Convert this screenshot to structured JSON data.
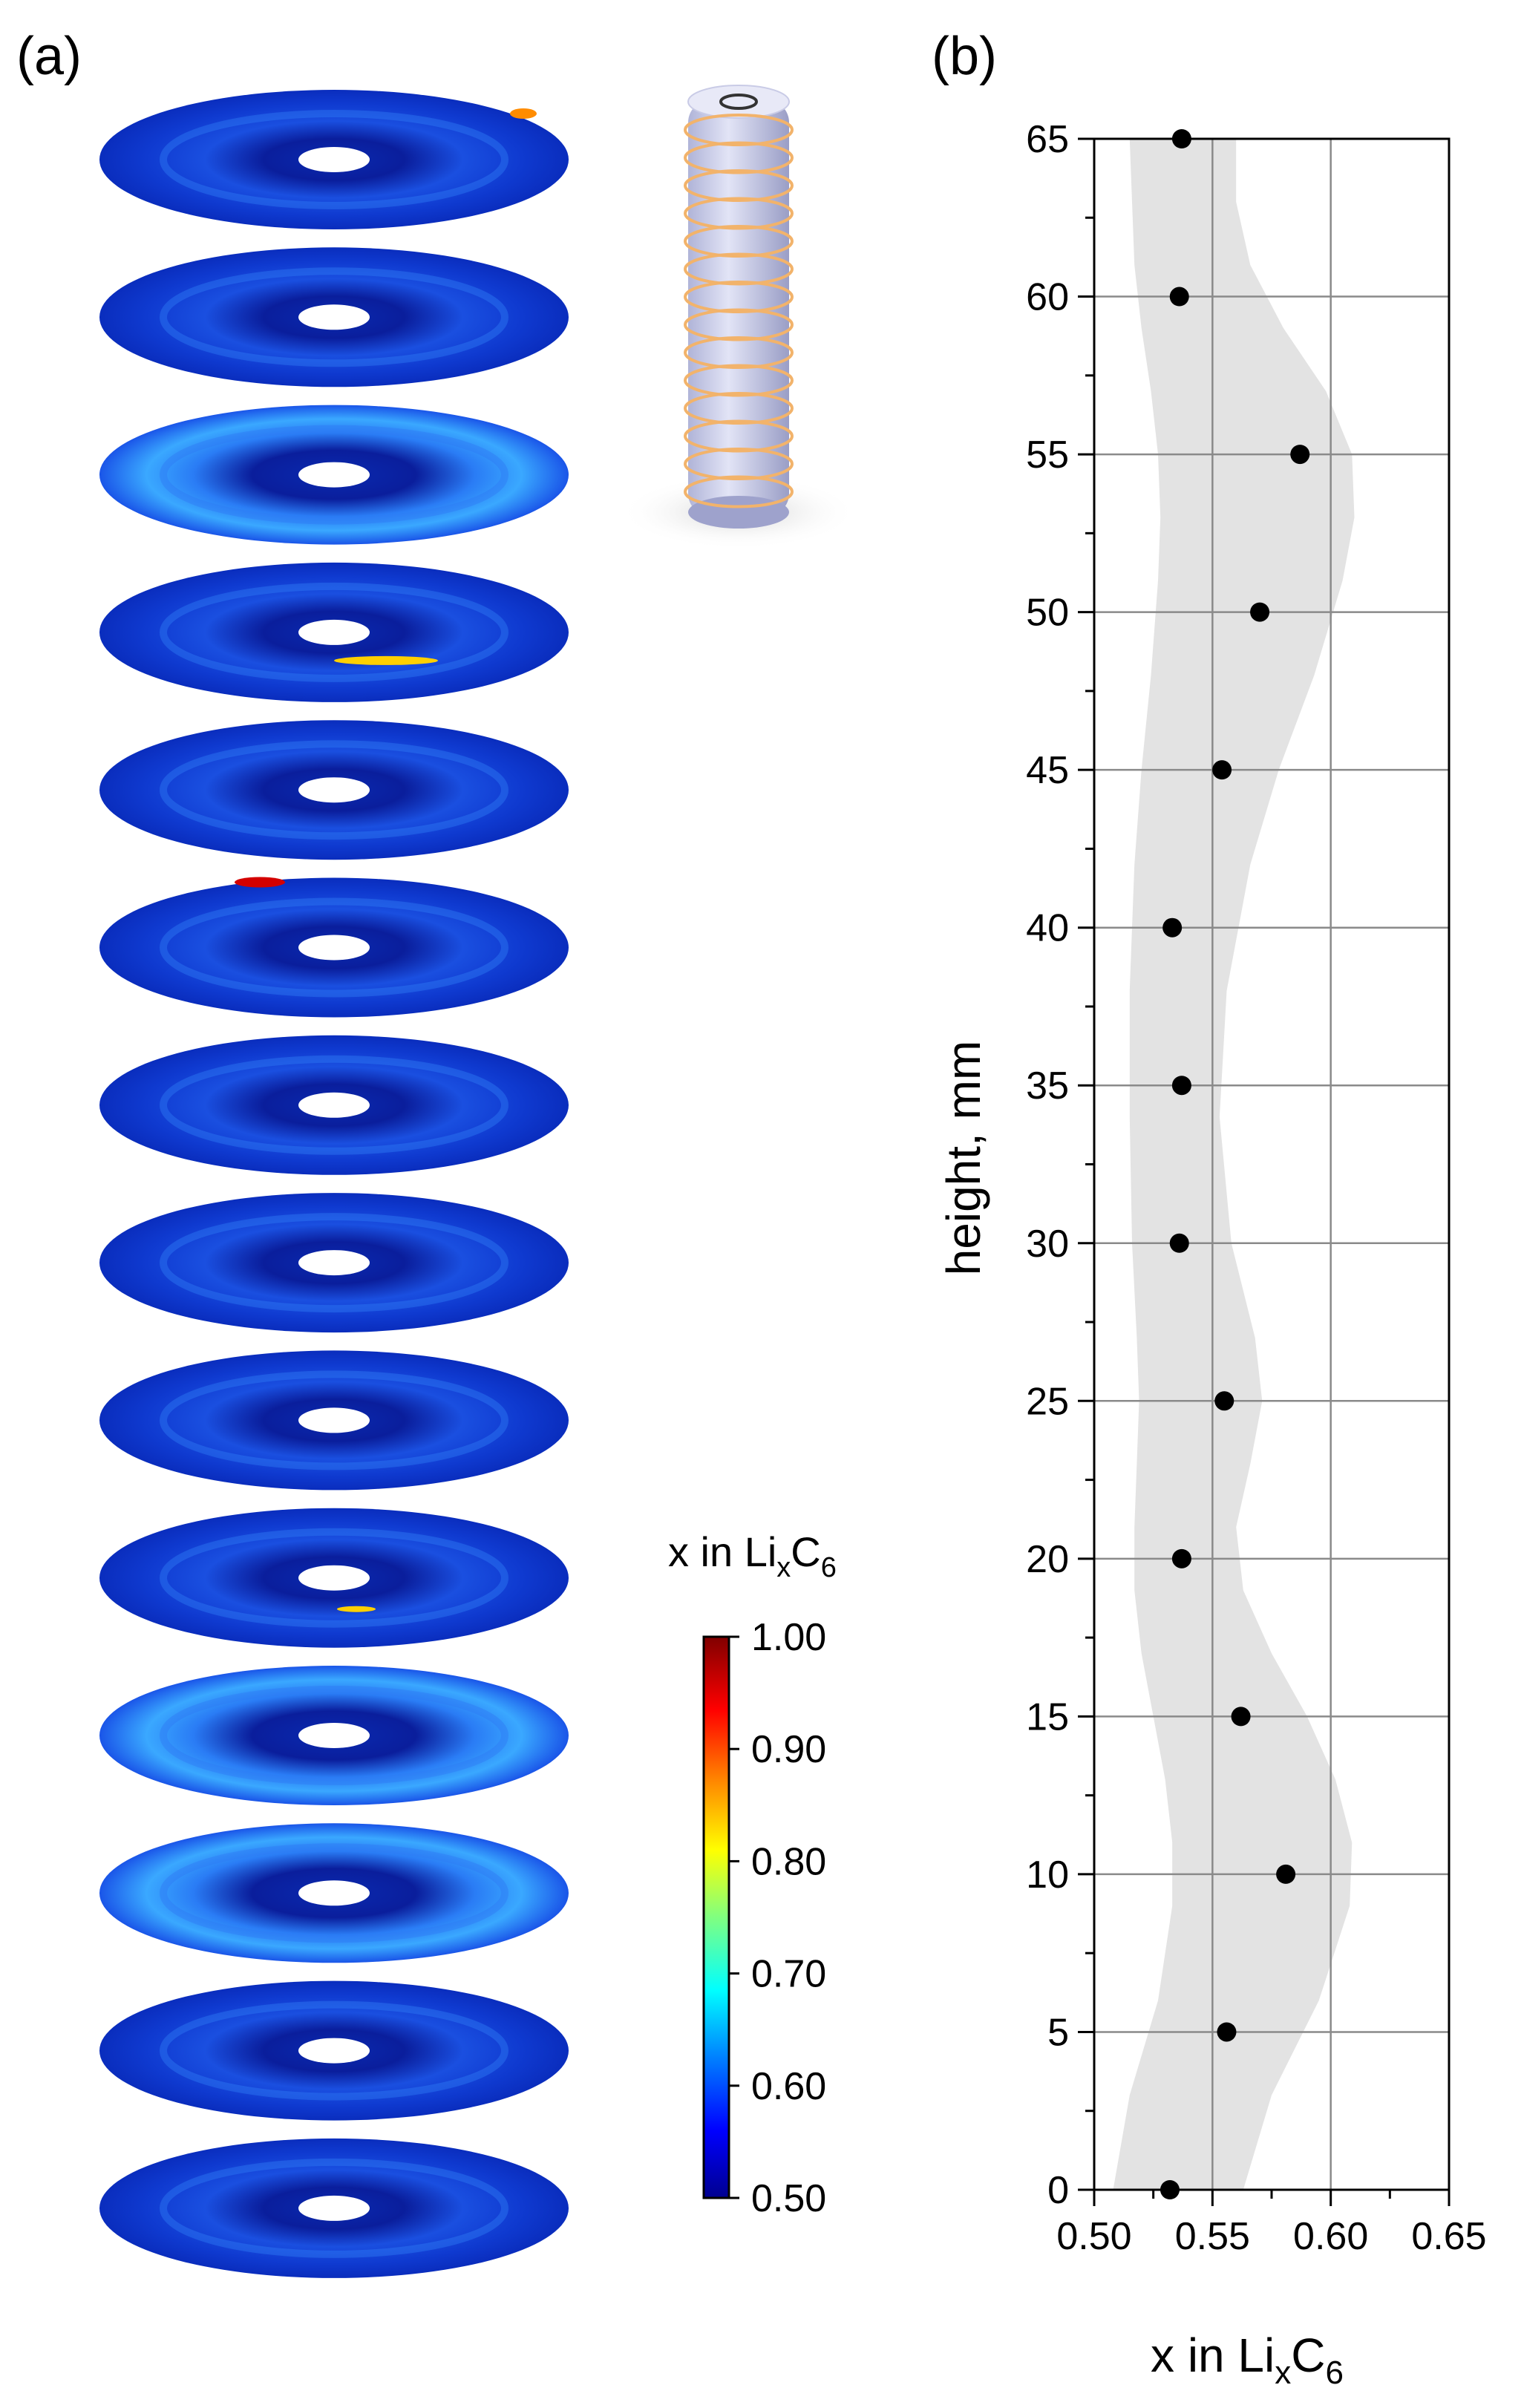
{
  "panel_a": {
    "label": "(a)",
    "slice_count": 14
  },
  "colorbar": {
    "title_main": "x in Li",
    "title_sub1": "x",
    "title_mid": "C",
    "title_sub2": "6",
    "min": 0.5,
    "max": 1.0,
    "ticks": [
      {
        "value": 1.0,
        "label": "1.00"
      },
      {
        "value": 0.9,
        "label": "0.90"
      },
      {
        "value": 0.8,
        "label": "0.80"
      },
      {
        "value": 0.7,
        "label": "0.70"
      },
      {
        "value": 0.6,
        "label": "0.60"
      },
      {
        "value": 0.5,
        "label": "0.50"
      }
    ],
    "colors": [
      "#00008f",
      "#0000ff",
      "#0080ff",
      "#00ffff",
      "#80ff80",
      "#ffff00",
      "#ff8000",
      "#ff0000",
      "#800000"
    ]
  },
  "panel_b": {
    "label": "(b)"
  },
  "chart_data": {
    "type": "scatter",
    "xlabel_main": "x in Li",
    "xlabel_sub1": "x",
    "xlabel_mid": "C",
    "xlabel_sub2": "6",
    "ylabel": "height, mm",
    "xlim": [
      0.5,
      0.65
    ],
    "ylim": [
      0,
      65
    ],
    "grid": true,
    "x_ticks": [
      {
        "value": 0.5,
        "label": "0.50"
      },
      {
        "value": 0.55,
        "label": "0.55"
      },
      {
        "value": 0.6,
        "label": "0.60"
      },
      {
        "value": 0.65,
        "label": "0.65"
      }
    ],
    "y_ticks": [
      {
        "value": 0,
        "label": "0"
      },
      {
        "value": 5,
        "label": "5"
      },
      {
        "value": 10,
        "label": "10"
      },
      {
        "value": 15,
        "label": "15"
      },
      {
        "value": 20,
        "label": "20"
      },
      {
        "value": 25,
        "label": "25"
      },
      {
        "value": 30,
        "label": "30"
      },
      {
        "value": 35,
        "label": "35"
      },
      {
        "value": 40,
        "label": "40"
      },
      {
        "value": 45,
        "label": "45"
      },
      {
        "value": 50,
        "label": "50"
      },
      {
        "value": 55,
        "label": "55"
      },
      {
        "value": 60,
        "label": "60"
      },
      {
        "value": 65,
        "label": "65"
      }
    ],
    "points": [
      {
        "x": 0.532,
        "y": 0
      },
      {
        "x": 0.556,
        "y": 5
      },
      {
        "x": 0.581,
        "y": 10
      },
      {
        "x": 0.562,
        "y": 15
      },
      {
        "x": 0.537,
        "y": 20
      },
      {
        "x": 0.555,
        "y": 25
      },
      {
        "x": 0.536,
        "y": 30
      },
      {
        "x": 0.537,
        "y": 35
      },
      {
        "x": 0.533,
        "y": 40
      },
      {
        "x": 0.554,
        "y": 45
      },
      {
        "x": 0.57,
        "y": 50
      },
      {
        "x": 0.587,
        "y": 55
      },
      {
        "x": 0.536,
        "y": 60
      },
      {
        "x": 0.537,
        "y": 65
      }
    ],
    "band": [
      {
        "y": 0,
        "lo": 0.508,
        "hi": 0.563
      },
      {
        "y": 3,
        "lo": 0.515,
        "hi": 0.575
      },
      {
        "y": 6,
        "lo": 0.527,
        "hi": 0.595
      },
      {
        "y": 9,
        "lo": 0.533,
        "hi": 0.608
      },
      {
        "y": 11,
        "lo": 0.533,
        "hi": 0.609
      },
      {
        "y": 13,
        "lo": 0.53,
        "hi": 0.602
      },
      {
        "y": 15,
        "lo": 0.525,
        "hi": 0.59
      },
      {
        "y": 17,
        "lo": 0.52,
        "hi": 0.575
      },
      {
        "y": 19,
        "lo": 0.517,
        "hi": 0.563
      },
      {
        "y": 21,
        "lo": 0.517,
        "hi": 0.56
      },
      {
        "y": 23,
        "lo": 0.518,
        "hi": 0.566
      },
      {
        "y": 25,
        "lo": 0.519,
        "hi": 0.571
      },
      {
        "y": 27,
        "lo": 0.518,
        "hi": 0.568
      },
      {
        "y": 30,
        "lo": 0.516,
        "hi": 0.558
      },
      {
        "y": 34,
        "lo": 0.515,
        "hi": 0.553
      },
      {
        "y": 38,
        "lo": 0.515,
        "hi": 0.556
      },
      {
        "y": 42,
        "lo": 0.517,
        "hi": 0.566
      },
      {
        "y": 45,
        "lo": 0.52,
        "hi": 0.578
      },
      {
        "y": 48,
        "lo": 0.524,
        "hi": 0.593
      },
      {
        "y": 51,
        "lo": 0.527,
        "hi": 0.605
      },
      {
        "y": 53,
        "lo": 0.528,
        "hi": 0.61
      },
      {
        "y": 55,
        "lo": 0.527,
        "hi": 0.609
      },
      {
        "y": 57,
        "lo": 0.524,
        "hi": 0.598
      },
      {
        "y": 59,
        "lo": 0.52,
        "hi": 0.58
      },
      {
        "y": 61,
        "lo": 0.517,
        "hi": 0.566
      },
      {
        "y": 63,
        "lo": 0.516,
        "hi": 0.56
      },
      {
        "y": 65,
        "lo": 0.515,
        "hi": 0.56
      }
    ]
  }
}
